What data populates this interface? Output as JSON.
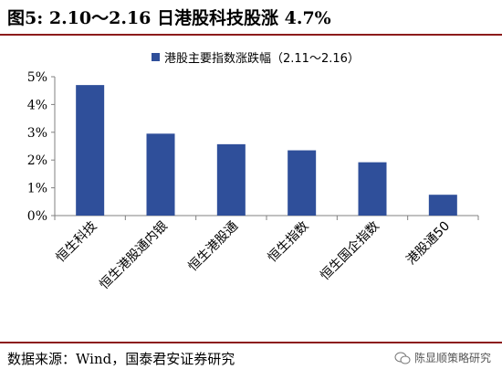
{
  "header": {
    "title": "图5:  2.10～2.16 日港股科技股涨 4.7%"
  },
  "footer": {
    "source": "数据来源：Wind，国泰君安证券研究",
    "watermark": "陈显顺策略研究",
    "watermark_icon": "wechat-icon"
  },
  "colors": {
    "bar": "#2f4f9a",
    "rule": "#8c1b1b",
    "axis": "#808080"
  },
  "chart_data": {
    "type": "bar",
    "title": "",
    "xlabel": "",
    "ylabel": "",
    "legend": {
      "label": "港股主要指数涨跌幅（2.11～2.16）",
      "placement": "top"
    },
    "categories": [
      "恒生科技",
      "恒生港股通内银",
      "恒生港股通",
      "恒生指数",
      "恒生国企指数",
      "港股通50"
    ],
    "values": [
      4.7,
      2.95,
      2.57,
      2.35,
      1.92,
      0.75
    ],
    "ylim": [
      0,
      5
    ],
    "yticks": [
      "0%",
      "1%",
      "2%",
      "3%",
      "4%",
      "5%"
    ],
    "grid": false
  }
}
